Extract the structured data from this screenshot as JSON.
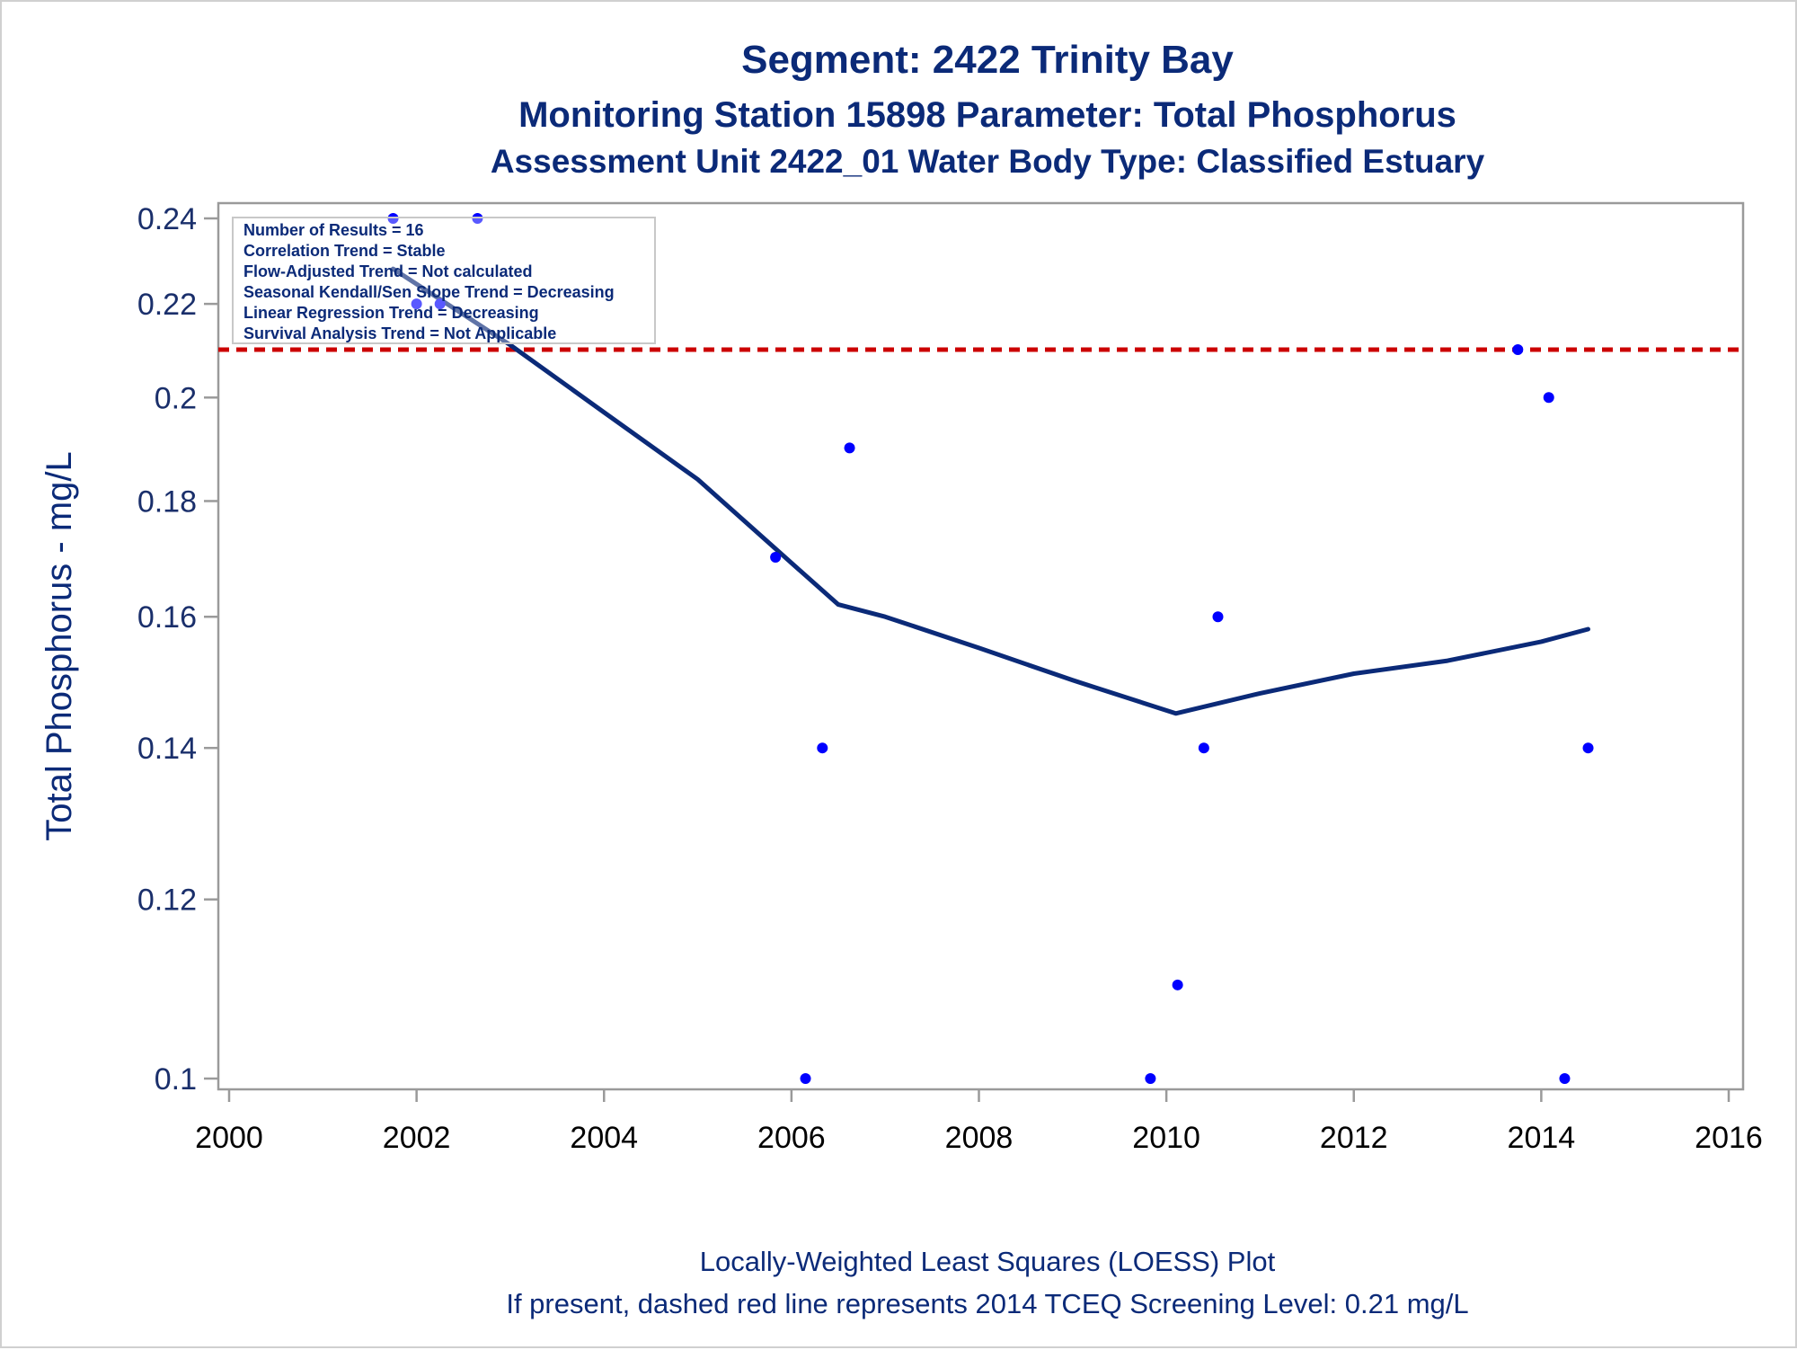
{
  "titles": {
    "line1": "Segment: 2422  Trinity Bay",
    "line2": "Monitoring Station 15898 Parameter: Total Phosphorus",
    "line3": "Assessment Unit 2422_01   Water Body Type: Classified Estuary"
  },
  "footnotes": {
    "line1": "Locally-Weighted Least Squares (LOESS) Plot",
    "line2": "If present, dashed red line represents 2014 TCEQ Screening Level: 0.21 mg/L"
  },
  "stats_box": {
    "lines": [
      "Number of Results = 16",
      "Correlation Trend = Stable",
      "Flow-Adjusted Trend = Not calculated",
      "Seasonal Kendall/Sen Slope Trend = Decreasing",
      "Linear Regression Trend = Decreasing",
      "Survival Analysis Trend = Not Applicable"
    ]
  },
  "colors": {
    "points": "#0000ff",
    "loess_line": "#0b2a78",
    "screening_line": "#cc0000",
    "text": "#0b2a78"
  },
  "chart_data": {
    "type": "scatter",
    "ylabel": "Total Phosphorus - mg/L",
    "xlabel": "",
    "yscale": "log",
    "xlim": [
      2000,
      2016
    ],
    "ylim": [
      0.1,
      0.24
    ],
    "xticks": [
      "2000",
      "2002",
      "2004",
      "2006",
      "2008",
      "2010",
      "2012",
      "2014",
      "2016"
    ],
    "yticks": [
      "0.1",
      "0.12",
      "0.14",
      "0.16",
      "0.18",
      "0.2",
      "0.22",
      "0.24"
    ],
    "screening_level": 0.21,
    "points": [
      {
        "x": 2001.75,
        "y": 0.24
      },
      {
        "x": 2002.0,
        "y": 0.22
      },
      {
        "x": 2002.25,
        "y": 0.22
      },
      {
        "x": 2002.65,
        "y": 0.24
      },
      {
        "x": 2005.83,
        "y": 0.17
      },
      {
        "x": 2006.15,
        "y": 0.1
      },
      {
        "x": 2006.33,
        "y": 0.14
      },
      {
        "x": 2006.62,
        "y": 0.19
      },
      {
        "x": 2009.83,
        "y": 0.1
      },
      {
        "x": 2010.12,
        "y": 0.11
      },
      {
        "x": 2010.4,
        "y": 0.14
      },
      {
        "x": 2010.55,
        "y": 0.16
      },
      {
        "x": 2013.75,
        "y": 0.21
      },
      {
        "x": 2014.08,
        "y": 0.2
      },
      {
        "x": 2014.25,
        "y": 0.1
      },
      {
        "x": 2014.5,
        "y": 0.14
      }
    ],
    "loess": [
      {
        "x": 2001.75,
        "y": 0.228
      },
      {
        "x": 2003.0,
        "y": 0.211
      },
      {
        "x": 2004.0,
        "y": 0.197
      },
      {
        "x": 2005.0,
        "y": 0.184
      },
      {
        "x": 2006.0,
        "y": 0.169
      },
      {
        "x": 2006.5,
        "y": 0.162
      },
      {
        "x": 2007.0,
        "y": 0.16
      },
      {
        "x": 2008.0,
        "y": 0.155
      },
      {
        "x": 2009.0,
        "y": 0.15
      },
      {
        "x": 2010.1,
        "y": 0.145
      },
      {
        "x": 2011.0,
        "y": 0.148
      },
      {
        "x": 2012.0,
        "y": 0.151
      },
      {
        "x": 2013.0,
        "y": 0.153
      },
      {
        "x": 2014.0,
        "y": 0.156
      },
      {
        "x": 2014.5,
        "y": 0.158
      }
    ]
  }
}
